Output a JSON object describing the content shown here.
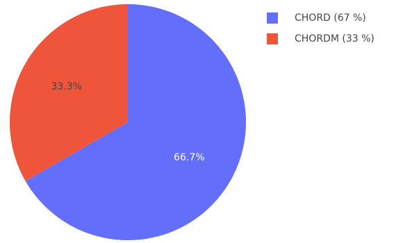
{
  "chart_data": {
    "type": "pie",
    "title": "",
    "slices": [
      {
        "label": "CHORD (67 %)",
        "value": 66.7,
        "display": "66.7%",
        "color": "#636efa",
        "text_color": "#ffffff"
      },
      {
        "label": "CHORDM (33 %)",
        "value": 33.3,
        "display": "33.3%",
        "color": "#ef553b",
        "text_color": "#444444"
      }
    ],
    "legend_position": "top-right",
    "start_angle": "12 o'clock",
    "direction": "clockwise"
  }
}
